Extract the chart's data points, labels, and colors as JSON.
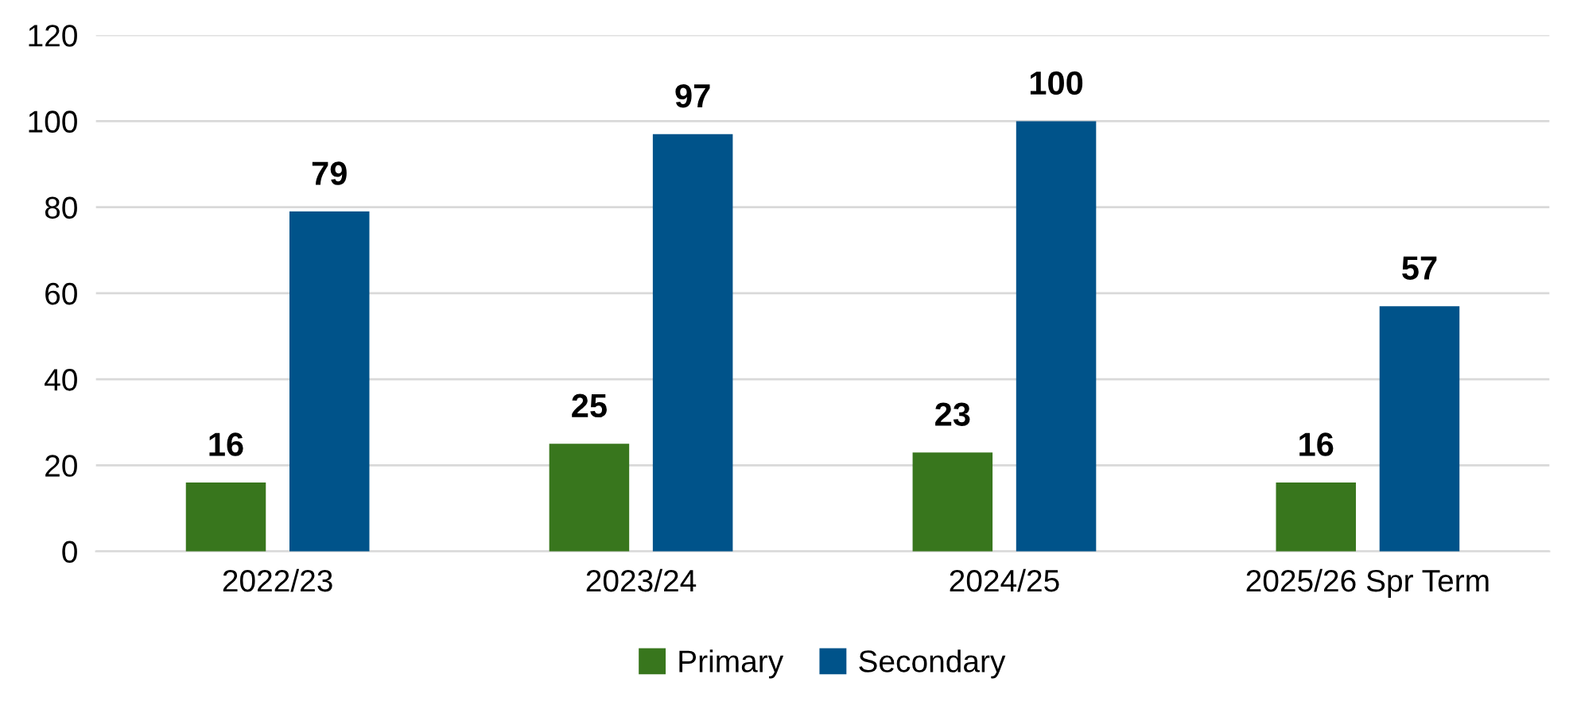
{
  "chart_data": {
    "type": "bar",
    "categories": [
      "2022/23",
      "2023/24",
      "2024/25",
      "2025/26 Spr Term"
    ],
    "series": [
      {
        "name": "Primary",
        "color": "#38761d",
        "values": [
          16,
          25,
          23,
          16
        ]
      },
      {
        "name": "Secondary",
        "color": "#00538a",
        "values": [
          79,
          97,
          100,
          57
        ]
      }
    ],
    "ylim": [
      0,
      120
    ],
    "yticks": [
      0,
      20,
      40,
      60,
      80,
      100,
      120
    ],
    "grid": "y",
    "legend": "bottom",
    "data_labels": true
  }
}
